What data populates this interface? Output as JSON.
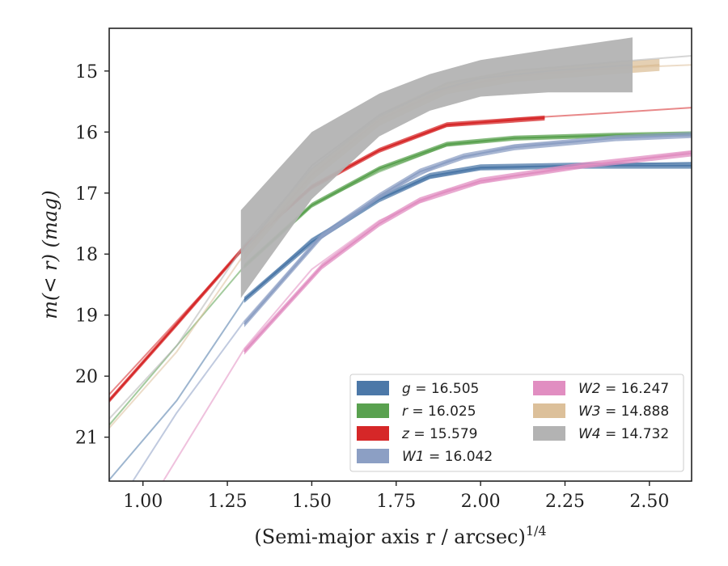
{
  "chart_data": {
    "type": "line",
    "xlabel": "(Semi-major axis r / arcsec)",
    "xlabel_exponent": "1/4",
    "ylabel": "m(< r) (mag)",
    "xlim": [
      0.9,
      2.625
    ],
    "ylim": [
      21.72,
      14.3
    ],
    "y_inverted": true,
    "grid": false,
    "legend_position": "lower-right",
    "x_ticks": [
      {
        "value": 1.0,
        "label": "1.00"
      },
      {
        "value": 1.25,
        "label": "1.25"
      },
      {
        "value": 1.5,
        "label": "1.50"
      },
      {
        "value": 1.75,
        "label": "1.75"
      },
      {
        "value": 2.0,
        "label": "2.00"
      },
      {
        "value": 2.25,
        "label": "2.25"
      },
      {
        "value": 2.5,
        "label": "2.50"
      }
    ],
    "y_ticks": [
      {
        "value": 15,
        "label": "15"
      },
      {
        "value": 16,
        "label": "16"
      },
      {
        "value": 17,
        "label": "17"
      },
      {
        "value": 18,
        "label": "18"
      },
      {
        "value": 19,
        "label": "19"
      },
      {
        "value": 20,
        "label": "20"
      },
      {
        "value": 21,
        "label": "21"
      }
    ],
    "series": [
      {
        "name": "g = 16.505",
        "legend_var": "g",
        "legend_value": "= 16.505",
        "color": "#4c78a8",
        "model": [
          [
            0.9,
            21.7
          ],
          [
            1.1,
            20.4
          ],
          [
            1.3,
            18.75
          ],
          [
            1.5,
            17.75
          ],
          [
            1.7,
            17.1
          ],
          [
            1.85,
            16.75
          ],
          [
            2.0,
            16.6
          ],
          [
            2.3,
            16.54
          ],
          [
            2.625,
            16.5
          ]
        ],
        "data": [
          [
            1.3,
            18.75
          ],
          [
            1.5,
            17.8
          ],
          [
            1.7,
            17.1
          ],
          [
            1.85,
            16.72
          ],
          [
            2.0,
            16.58
          ],
          [
            2.3,
            16.55
          ],
          [
            2.625,
            16.55
          ]
        ],
        "band_halfwidth": 0.05
      },
      {
        "name": "r = 16.025",
        "legend_var": "r",
        "legend_value": "= 16.025",
        "color": "#59a14f",
        "model": [
          [
            0.9,
            20.8
          ],
          [
            1.1,
            19.5
          ],
          [
            1.3,
            18.2
          ],
          [
            1.5,
            17.2
          ],
          [
            1.7,
            16.65
          ],
          [
            1.9,
            16.22
          ],
          [
            2.1,
            16.1
          ],
          [
            2.4,
            16.06
          ],
          [
            2.625,
            16.03
          ]
        ],
        "data": [
          [
            1.3,
            18.2
          ],
          [
            1.5,
            17.2
          ],
          [
            1.7,
            16.6
          ],
          [
            1.9,
            16.2
          ],
          [
            2.1,
            16.1
          ],
          [
            2.4,
            16.05
          ],
          [
            2.625,
            16.03
          ]
        ],
        "band_halfwidth": 0.04
      },
      {
        "name": "z = 15.579",
        "legend_var": "z",
        "legend_value": "= 15.579",
        "color": "#d62728",
        "model": [
          [
            0.9,
            20.3
          ],
          [
            1.1,
            19.1
          ],
          [
            1.3,
            17.9
          ],
          [
            1.5,
            16.9
          ],
          [
            1.7,
            16.3
          ],
          [
            1.9,
            15.9
          ],
          [
            2.1,
            15.78
          ],
          [
            2.4,
            15.68
          ],
          [
            2.625,
            15.6
          ]
        ],
        "data": [
          [
            0.9,
            20.4
          ],
          [
            1.1,
            19.15
          ],
          [
            1.3,
            17.88
          ],
          [
            1.5,
            16.9
          ],
          [
            1.7,
            16.3
          ],
          [
            1.9,
            15.88
          ],
          [
            2.19,
            15.77
          ]
        ],
        "band_halfwidth": 0.04
      },
      {
        "name": "W1 = 16.042",
        "legend_var": "W1",
        "legend_value": "= 16.042",
        "color": "#8c9fc4",
        "model": [
          [
            0.97,
            21.72
          ],
          [
            1.1,
            20.6
          ],
          [
            1.3,
            19.1
          ],
          [
            1.5,
            17.85
          ],
          [
            1.7,
            17.05
          ],
          [
            1.9,
            16.48
          ],
          [
            2.1,
            16.22
          ],
          [
            2.4,
            16.1
          ],
          [
            2.625,
            16.05
          ]
        ],
        "data": [
          [
            1.3,
            19.15
          ],
          [
            1.53,
            17.7
          ],
          [
            1.7,
            17.05
          ],
          [
            1.82,
            16.65
          ],
          [
            1.95,
            16.4
          ],
          [
            2.1,
            16.25
          ],
          [
            2.4,
            16.1
          ],
          [
            2.625,
            16.05
          ]
        ],
        "band_halfwidth": 0.05
      },
      {
        "name": "W2 = 16.247",
        "legend_var": "W2",
        "legend_value": "= 16.247",
        "color": "#e18ec1",
        "model": [
          [
            1.06,
            21.72
          ],
          [
            1.3,
            19.55
          ],
          [
            1.5,
            18.25
          ],
          [
            1.7,
            17.45
          ],
          [
            1.9,
            16.95
          ],
          [
            2.1,
            16.72
          ],
          [
            2.4,
            16.5
          ],
          [
            2.625,
            16.32
          ]
        ],
        "data": [
          [
            1.3,
            19.6
          ],
          [
            1.53,
            18.2
          ],
          [
            1.7,
            17.5
          ],
          [
            1.82,
            17.12
          ],
          [
            2.0,
            16.8
          ],
          [
            2.3,
            16.55
          ],
          [
            2.625,
            16.35
          ]
        ],
        "band_halfwidth": 0.05
      },
      {
        "name": "W3 = 14.888",
        "legend_var": "W3",
        "legend_value": "= 14.888",
        "color": "#dcc09a",
        "model": [
          [
            0.9,
            20.85
          ],
          [
            1.1,
            19.6
          ],
          [
            1.3,
            18.0
          ],
          [
            1.5,
            16.7
          ],
          [
            1.7,
            15.8
          ],
          [
            1.9,
            15.3
          ],
          [
            2.1,
            15.08
          ],
          [
            2.4,
            14.95
          ],
          [
            2.625,
            14.9
          ]
        ],
        "data": [
          [
            1.3,
            18.0
          ],
          [
            1.5,
            16.7
          ],
          [
            1.7,
            15.8
          ],
          [
            1.9,
            15.28
          ],
          [
            2.1,
            15.08
          ],
          [
            2.4,
            14.95
          ],
          [
            2.53,
            14.9
          ]
        ],
        "band_halfwidth": 0.1
      },
      {
        "name": "W4 = 14.732",
        "legend_var": "W4",
        "legend_value": "= 14.732",
        "color": "#b3b3b3",
        "model": [
          [
            0.9,
            20.7
          ],
          [
            1.1,
            19.5
          ],
          [
            1.3,
            17.85
          ],
          [
            1.5,
            16.6
          ],
          [
            1.7,
            15.75
          ],
          [
            1.9,
            15.2
          ],
          [
            2.1,
            15.0
          ],
          [
            2.4,
            14.85
          ],
          [
            2.625,
            14.75
          ]
        ],
        "data": [
          [
            1.29,
            18.0
          ],
          [
            1.5,
            16.55
          ],
          [
            1.7,
            15.72
          ],
          [
            1.85,
            15.35
          ],
          [
            2.0,
            15.12
          ],
          [
            2.2,
            15.0
          ],
          [
            2.45,
            14.9
          ]
        ],
        "band_halfwidth": [
          0.72,
          0.55,
          0.35,
          0.3,
          0.3,
          0.35,
          0.45
        ]
      }
    ]
  }
}
